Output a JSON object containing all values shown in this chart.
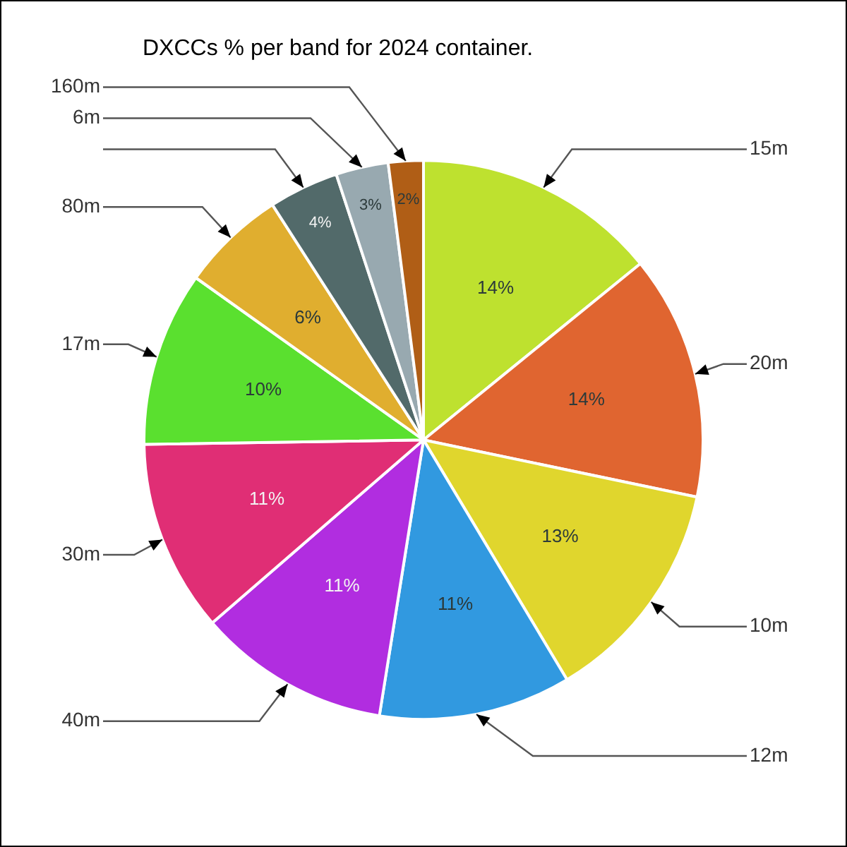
{
  "chart_data": {
    "type": "pie",
    "title": "DXCCs % per band for 2024 container.",
    "categories": [
      "15m",
      "20m",
      "10m",
      "12m",
      "40m",
      "30m",
      "17m",
      "80m",
      null,
      "6m",
      "160m"
    ],
    "values": [
      14,
      14,
      13,
      11,
      11,
      11,
      10,
      6,
      4,
      3,
      2
    ],
    "colors": [
      "#bee12f",
      "#e06530",
      "#e0d62d",
      "#3199e0",
      "#b12de0",
      "#e02e75",
      "#5ae02f",
      "#e0ae2f",
      "#526a6a",
      "#98a9b0",
      "#b05e16"
    ],
    "value_labels": [
      "14%",
      "14%",
      "13%",
      "11%",
      "11%",
      "11%",
      "10%",
      "6%",
      "4%",
      "3%",
      "2%"
    ],
    "legend": false
  }
}
